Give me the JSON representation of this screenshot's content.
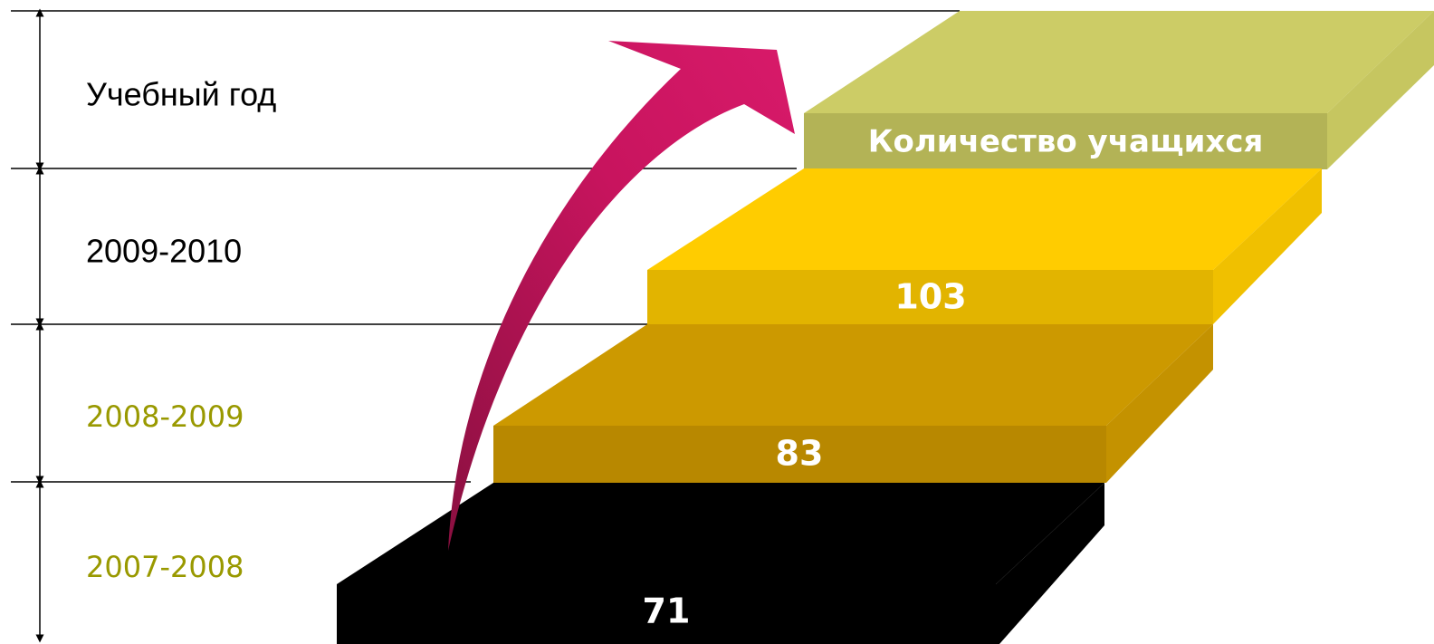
{
  "header": {
    "year_label": "Учебный год",
    "count_label": "Количество учащихся"
  },
  "rows": [
    {
      "year": "2009-2010",
      "count": 103
    },
    {
      "year": "2008-2009",
      "count": 83
    },
    {
      "year": "2007-2008",
      "count": 71
    }
  ]
}
